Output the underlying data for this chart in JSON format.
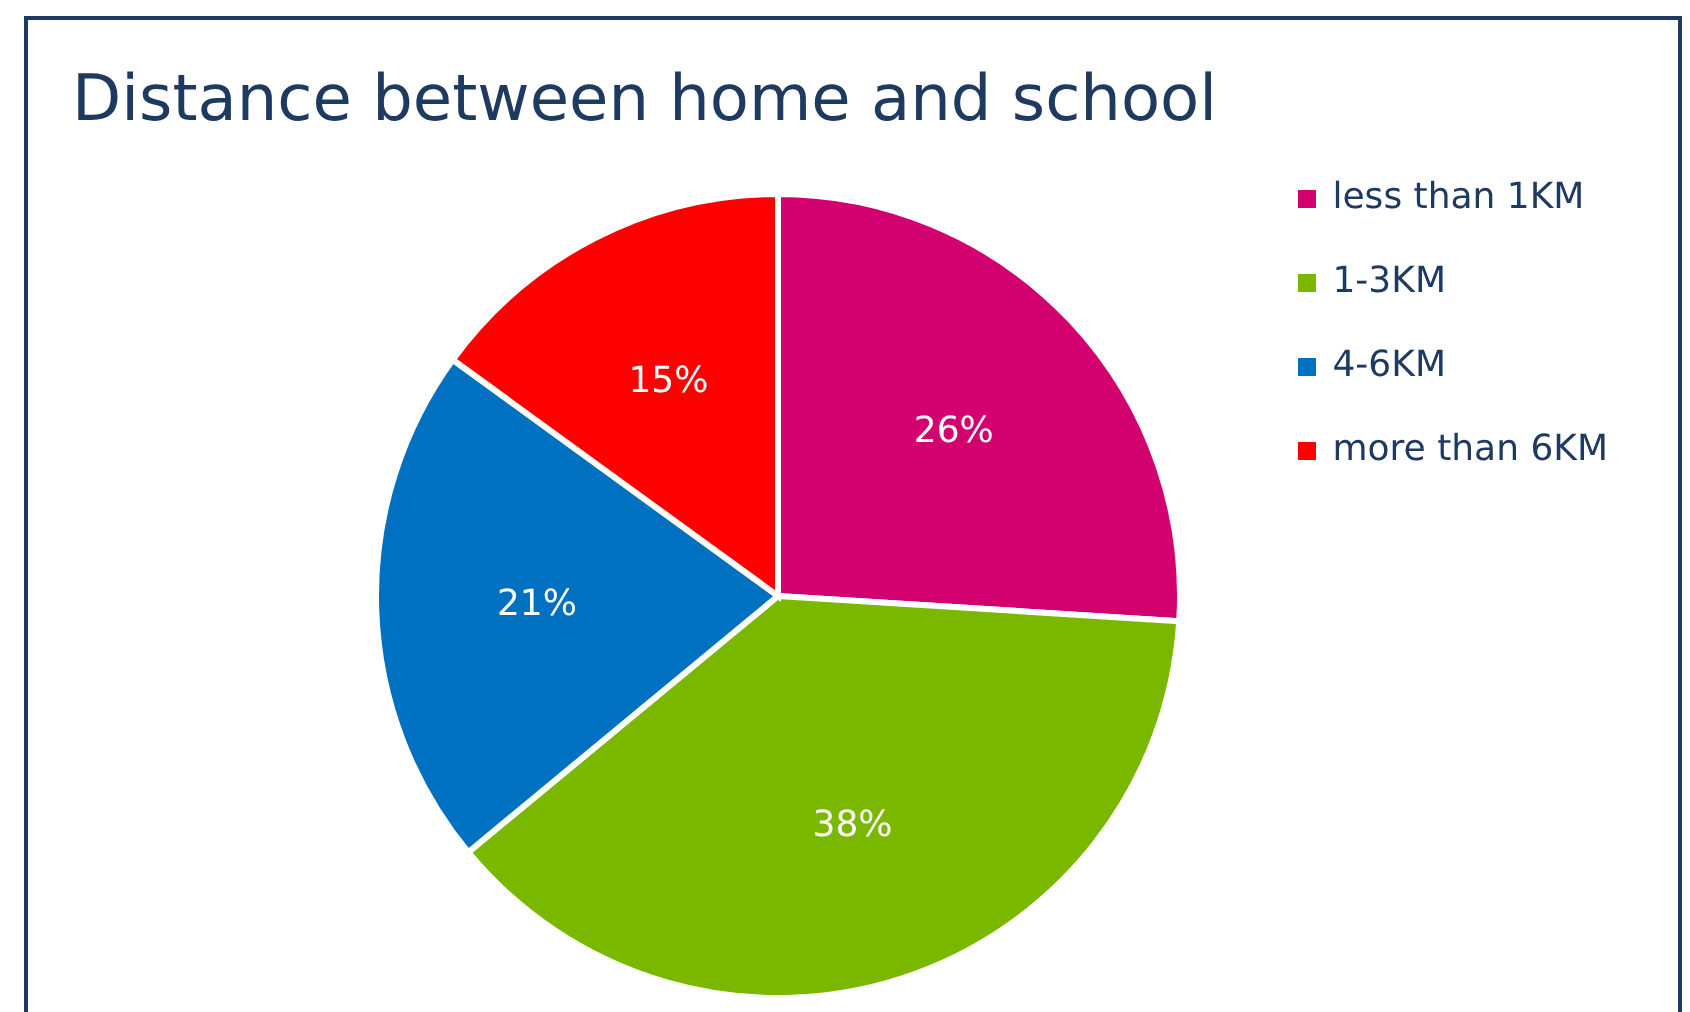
{
  "chart_data": {
    "type": "pie",
    "title": "Distance between home and school",
    "categories": [
      "less than 1KM",
      "1-3KM",
      "4-6KM",
      "more than 6KM"
    ],
    "values": [
      26,
      38,
      21,
      15
    ],
    "colors": [
      "#d3006f",
      "#7ab800",
      "#0070c0",
      "#ff0000"
    ],
    "value_labels": [
      "26%",
      "38%",
      "21%",
      "15%"
    ],
    "legend": "top right"
  }
}
